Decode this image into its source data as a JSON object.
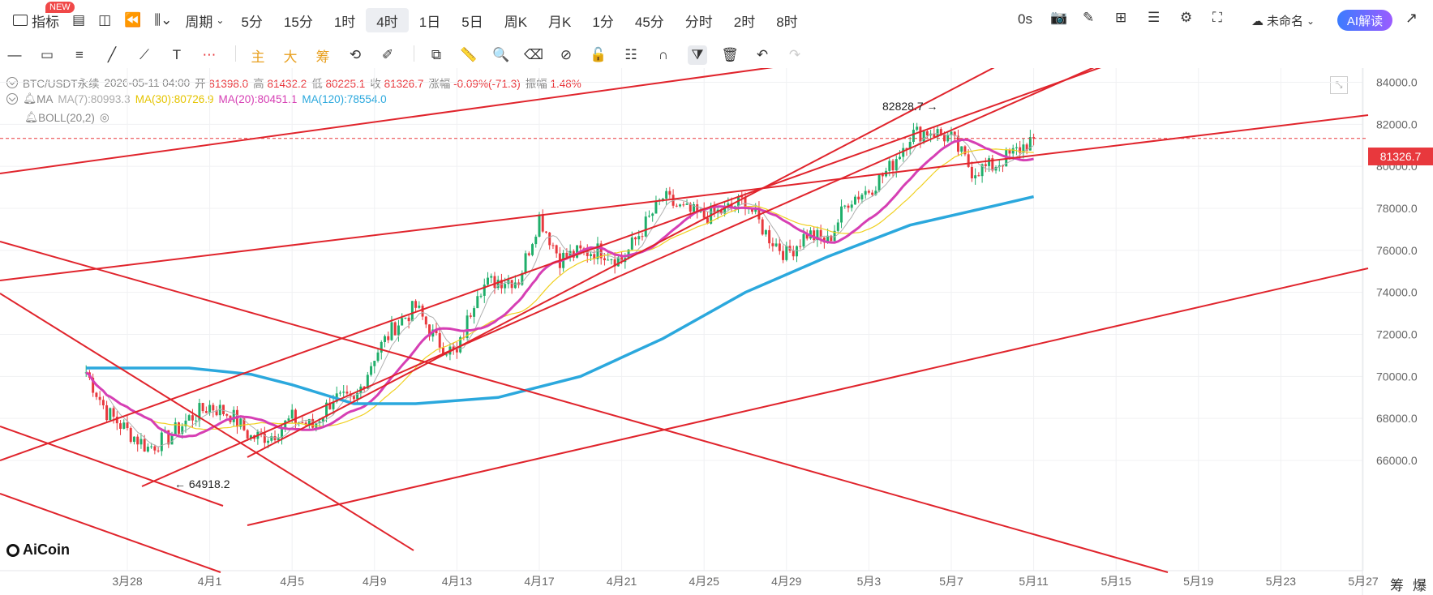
{
  "toolbar": {
    "indicator_label": "指标",
    "new_badge": "NEW",
    "period_label": "周期",
    "periods": [
      "5分",
      "15分",
      "1时",
      "4时",
      "1日",
      "5日",
      "周K",
      "月K",
      "1分",
      "45分",
      "分时",
      "2时",
      "8时"
    ],
    "active_period": "4时",
    "countdown": "0s",
    "account_label": "未命名",
    "ai_label": "AI解读"
  },
  "drawbar": {
    "main_label": "主",
    "big_label": "大",
    "chip_label": "筹"
  },
  "legend": {
    "symbol": "BTC/USDT永续",
    "datetime": "2026-05-11 04:00",
    "open_label": "开",
    "open": "81398.0",
    "high_label": "高",
    "high": "81432.2",
    "low_label": "低",
    "low": "80225.1",
    "close_label": "收",
    "close": "81326.7",
    "change_label": "涨幅",
    "change": "-0.09%(-71.3)",
    "amp_label": "振幅",
    "amp": "1.48%",
    "ma_label": "MA",
    "ma7": "MA(7):80993.3",
    "ma30": "MA(30):80726.9",
    "ma20": "MA(20):80451.1",
    "ma120": "MA(120):78554.0",
    "boll_label": "BOLL(20,2)"
  },
  "colors": {
    "up": "#1fae6a",
    "down": "#e8383d",
    "ma7": "#b0b0b0",
    "ma30": "#f0d020",
    "ma20": "#d63fb4",
    "ma120": "#2ba8dd",
    "trend": "#e0242c"
  },
  "price_tag": "81326.7",
  "logo_text": "AiCoin",
  "bottom_right": [
    "筹",
    "爆"
  ],
  "chart_data": {
    "type": "candlestick",
    "symbol": "BTC/USDT永续",
    "interval": "4时",
    "ylim": [
      64400,
      85000
    ],
    "y_ticks": [
      66000,
      68000,
      70000,
      72000,
      74000,
      76000,
      78000,
      80000,
      82000,
      84000
    ],
    "x_tick_labels": [
      "3月28",
      "4月1",
      "4月5",
      "4月9",
      "4月13",
      "4月17",
      "4月21",
      "4月25",
      "4月29",
      "5月3",
      "5月7",
      "5月11",
      "5月15",
      "5月19",
      "5月23",
      "5月27"
    ],
    "last_price": 81326.7,
    "max_label": "82828.7",
    "min_label": "64918.2",
    "anchors": [
      [
        "3月26",
        70200
      ],
      [
        "3月27",
        68300
      ],
      [
        "3月28",
        67400
      ],
      [
        "3月29",
        66600
      ],
      [
        "3月30",
        67100
      ],
      [
        "3月31",
        68000
      ],
      [
        "4月1",
        68600
      ],
      [
        "4月2",
        68200
      ],
      [
        "4月3",
        67100
      ],
      [
        "4月4",
        67200
      ],
      [
        "4月5",
        68000
      ],
      [
        "4月6",
        67600
      ],
      [
        "4月7",
        69000
      ],
      [
        "4月8",
        68700
      ],
      [
        "4月9",
        71000
      ],
      [
        "4月10",
        72400
      ],
      [
        "4月11",
        73300
      ],
      [
        "4月12",
        71700
      ],
      [
        "4月13",
        71000
      ],
      [
        "4月14",
        74200
      ],
      [
        "4月15",
        74600
      ],
      [
        "4月16",
        74600
      ],
      [
        "4月17",
        77600
      ],
      [
        "4月18",
        75600
      ],
      [
        "4月19",
        75900
      ],
      [
        "4月20",
        76000
      ],
      [
        "4月21",
        75500
      ],
      [
        "4月22",
        77000
      ],
      [
        "4月23",
        78500
      ],
      [
        "4月24",
        77900
      ],
      [
        "4月25",
        77600
      ],
      [
        "4月26",
        77900
      ],
      [
        "4月27",
        78400
      ],
      [
        "4月28",
        76800
      ],
      [
        "4月29",
        75800
      ],
      [
        "4月30",
        76800
      ],
      [
        "5月1",
        76400
      ],
      [
        "5月2",
        78400
      ],
      [
        "5月3",
        78900
      ],
      [
        "5月4",
        79900
      ],
      [
        "5月5",
        81500
      ],
      [
        "5月6",
        81700
      ],
      [
        "5月7",
        81300
      ],
      [
        "5月8",
        79800
      ],
      [
        "5月9",
        80000
      ],
      [
        "5月10",
        80600
      ],
      [
        "5月11",
        81326.7
      ]
    ],
    "series": [
      {
        "name": "MA(7)"
      },
      {
        "name": "MA(30)"
      },
      {
        "name": "MA(20)"
      },
      {
        "name": "MA(120)",
        "points": [
          [
            "3月26",
            70400
          ],
          [
            "3月31",
            70400
          ],
          [
            "4月3",
            70100
          ],
          [
            "4月5",
            69600
          ],
          [
            "4月8",
            68700
          ],
          [
            "4月11",
            68700
          ],
          [
            "4月15",
            69000
          ],
          [
            "4月19",
            70000
          ],
          [
            "4月23",
            71800
          ],
          [
            "4月27",
            74000
          ],
          [
            "5月1",
            75700
          ],
          [
            "5月5",
            77200
          ],
          [
            "5月9",
            78100
          ],
          [
            "5月11",
            78554
          ]
        ]
      }
    ],
    "trendlines": [
      [
        [
          "3月23",
          74800
        ],
        [
          "4月8",
          71100
        ],
        [
          "4月22",
          68600
        ],
        [
          "5月6",
          67000
        ],
        [
          "5月27",
          64500
        ]
      ],
      [
        [
          "3月23",
          74800
        ],
        [
          "4月8",
          71100
        ],
        [
          "4月22",
          68600
        ],
        [
          "5月6",
          67000
        ],
        [
          "5月27",
          64500
        ]
      ],
      [
        [
          "3月23",
          74800
        ],
        [
          "4月8",
          71100
        ],
        [
          "4月22",
          68600
        ],
        [
          "5月6",
          67000
        ],
        [
          "5月27",
          64500
        ]
      ],
      [
        [
          "3月23",
          74800
        ],
        [
          "4月8",
          71100
        ],
        [
          "4月22",
          68600
        ],
        [
          "5月6",
          67000
        ],
        [
          "5月27",
          64500
        ]
      ],
      [
        [
          "3月23",
          74800
        ],
        [
          "4月8",
          71100
        ],
        [
          "4月22",
          68600
        ],
        [
          "5月6",
          67000
        ],
        [
          "5月27",
          64500
        ]
      ],
      [
        [
          "3月23",
          74800
        ],
        [
          "4月8",
          71100
        ],
        [
          "4月22",
          68600
        ],
        [
          "5月6",
          67000
        ],
        [
          "5月27",
          64500
        ]
      ],
      [
        [
          "3月23",
          74800
        ],
        [
          "4月8",
          71100
        ],
        [
          "4月22",
          68600
        ],
        [
          "5月6",
          67000
        ],
        [
          "5月27",
          64500
        ]
      ],
      [
        [
          "3月23",
          74800
        ],
        [
          "4月8",
          71100
        ],
        [
          "4月22",
          68600
        ],
        [
          "5月6",
          67000
        ],
        [
          "5月27",
          64500
        ]
      ]
    ]
  }
}
